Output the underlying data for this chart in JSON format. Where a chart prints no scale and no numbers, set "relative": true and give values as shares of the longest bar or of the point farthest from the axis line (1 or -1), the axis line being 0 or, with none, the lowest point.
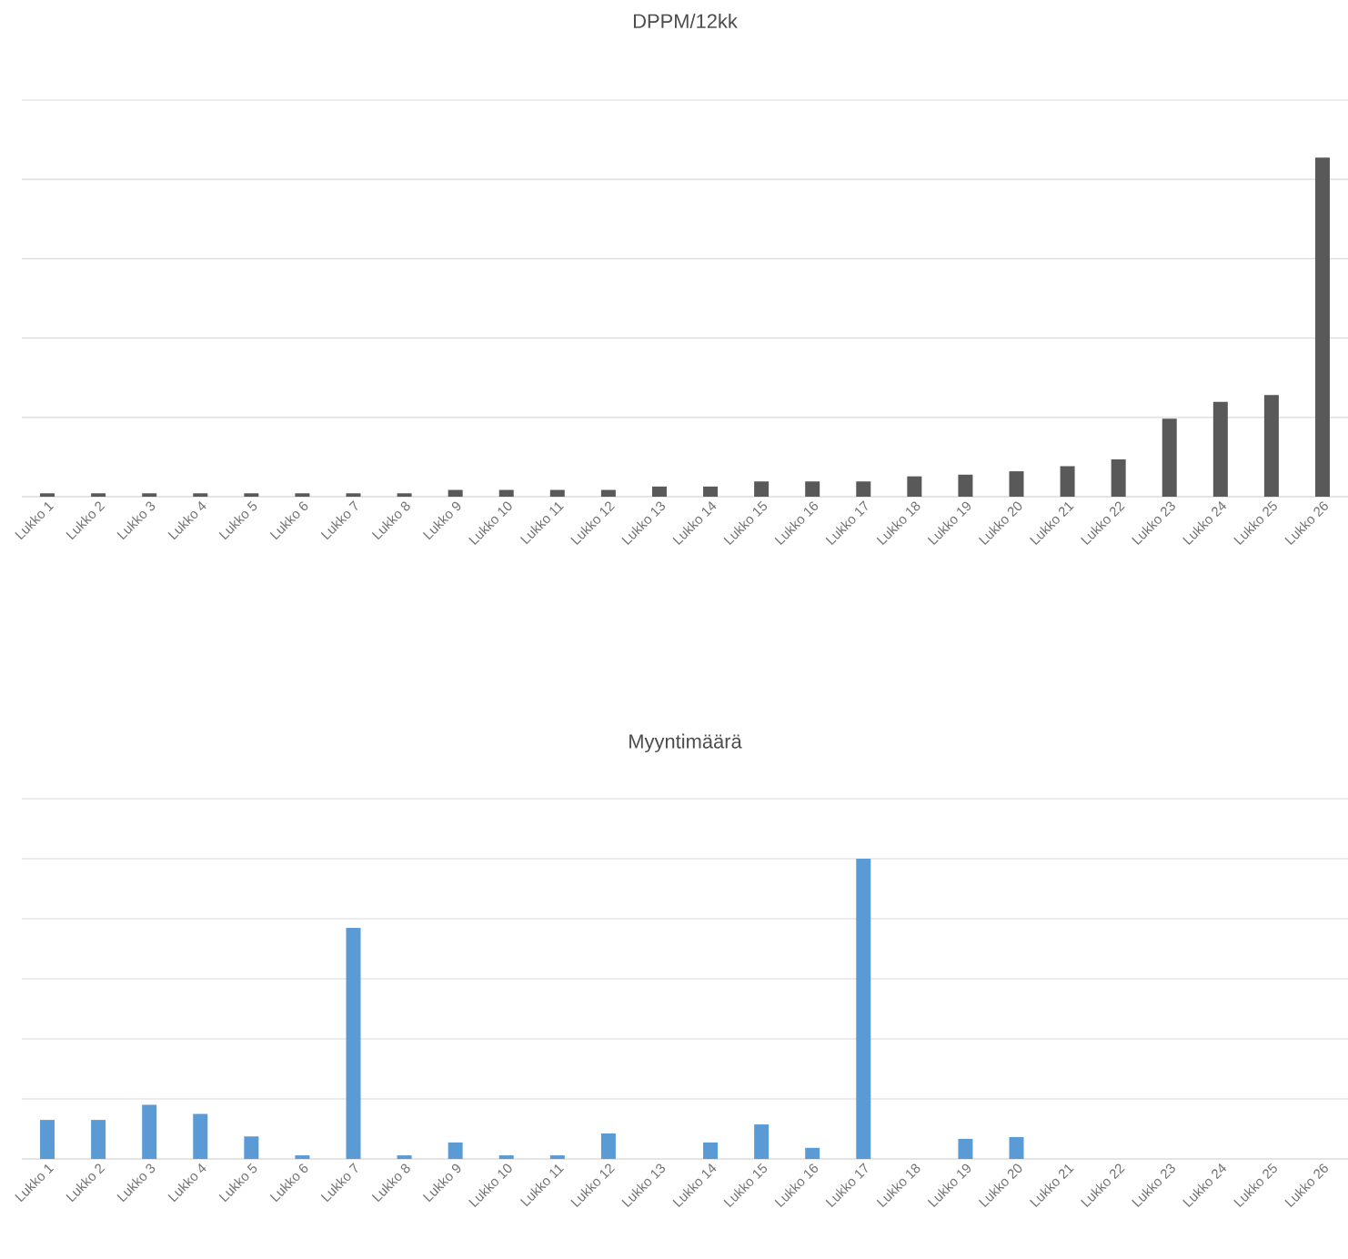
{
  "chart_data": [
    {
      "type": "bar",
      "title": "DPPM/12kk",
      "categories": [
        "Lukko 1",
        "Lukko 2",
        "Lukko 3",
        "Lukko 4",
        "Lukko 5",
        "Lukko 6",
        "Lukko 7",
        "Lukko 8",
        "Lukko 9",
        "Lukko 10",
        "Lukko 11",
        "Lukko 12",
        "Lukko 13",
        "Lukko 14",
        "Lukko 15",
        "Lukko 16",
        "Lukko 17",
        "Lukko 18",
        "Lukko 19",
        "Lukko 20",
        "Lukko 21",
        "Lukko 22",
        "Lukko 23",
        "Lukko 24",
        "Lukko 25",
        "Lukko 26"
      ],
      "values": [
        0.01,
        0.01,
        0.01,
        0.01,
        0.01,
        0.01,
        0.01,
        0.01,
        0.02,
        0.02,
        0.02,
        0.02,
        0.03,
        0.03,
        0.045,
        0.045,
        0.045,
        0.06,
        0.065,
        0.075,
        0.09,
        0.11,
        0.23,
        0.28,
        0.3,
        1
      ],
      "color": "#595959",
      "relative": true,
      "grid": "y",
      "tick_labels": "x"
    },
    {
      "type": "bar",
      "title": "Myyntimäärä",
      "categories": [
        "Lukko 1",
        "Lukko 2",
        "Lukko 3",
        "Lukko 4",
        "Lukko 5",
        "Lukko 6",
        "Lukko 7",
        "Lukko 8",
        "Lukko 9",
        "Lukko 10",
        "Lukko 11",
        "Lukko 12",
        "Lukko 13",
        "Lukko 14",
        "Lukko 15",
        "Lukko 16",
        "Lukko 17",
        "Lukko 18",
        "Lukko 19",
        "Lukko 20",
        "Lukko 21",
        "Lukko 22",
        "Lukko 23",
        "Lukko 24",
        "Lukko 25",
        "Lukko 26"
      ],
      "values": [
        0.13,
        0.13,
        0.18,
        0.15,
        0.075,
        0.012,
        0.77,
        0.012,
        0.055,
        0.012,
        0.012,
        0.085,
        0,
        0.055,
        0.115,
        0.037,
        1,
        0,
        0.067,
        0.073,
        0,
        0,
        0,
        0,
        0,
        0
      ],
      "color": "#5b9bd5",
      "relative": true,
      "grid": "y",
      "tick_labels": "x"
    }
  ]
}
